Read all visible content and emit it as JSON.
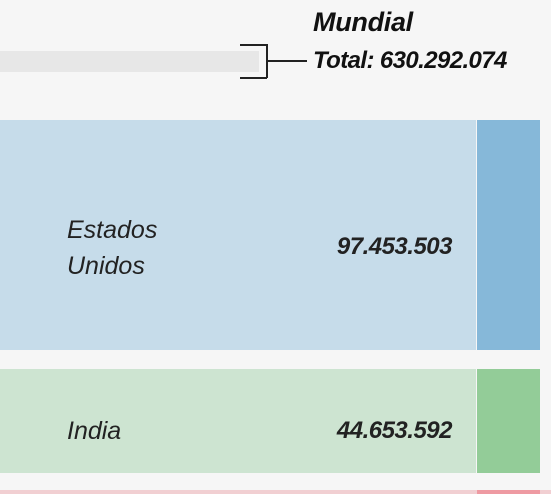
{
  "chart_data": {
    "type": "bar",
    "total": {
      "name": "Mundial",
      "label": "Total: 630.292.074",
      "value": 630292074
    },
    "categories": [
      "Estados Unidos",
      "India"
    ],
    "values": [
      97453503,
      44653592
    ],
    "value_labels": [
      "97.453.503",
      "44.653.592"
    ],
    "rows": [
      {
        "name": "Estados\nUnidos",
        "value_label": "97.453.503",
        "value": 97453503
      },
      {
        "name": "India",
        "value_label": "44.653.592",
        "value": 44653592
      }
    ],
    "colors": {
      "background": "#f6f6f6",
      "total_bar": "#e7e7e7",
      "row_1_main": "#c6dcea",
      "row_1_accent": "#86b8d9",
      "row_2_main": "#cde4d1",
      "row_2_accent": "#93cc98",
      "next_row_main": "#f1cfd2",
      "next_row_accent": "#ee9aa2"
    }
  }
}
